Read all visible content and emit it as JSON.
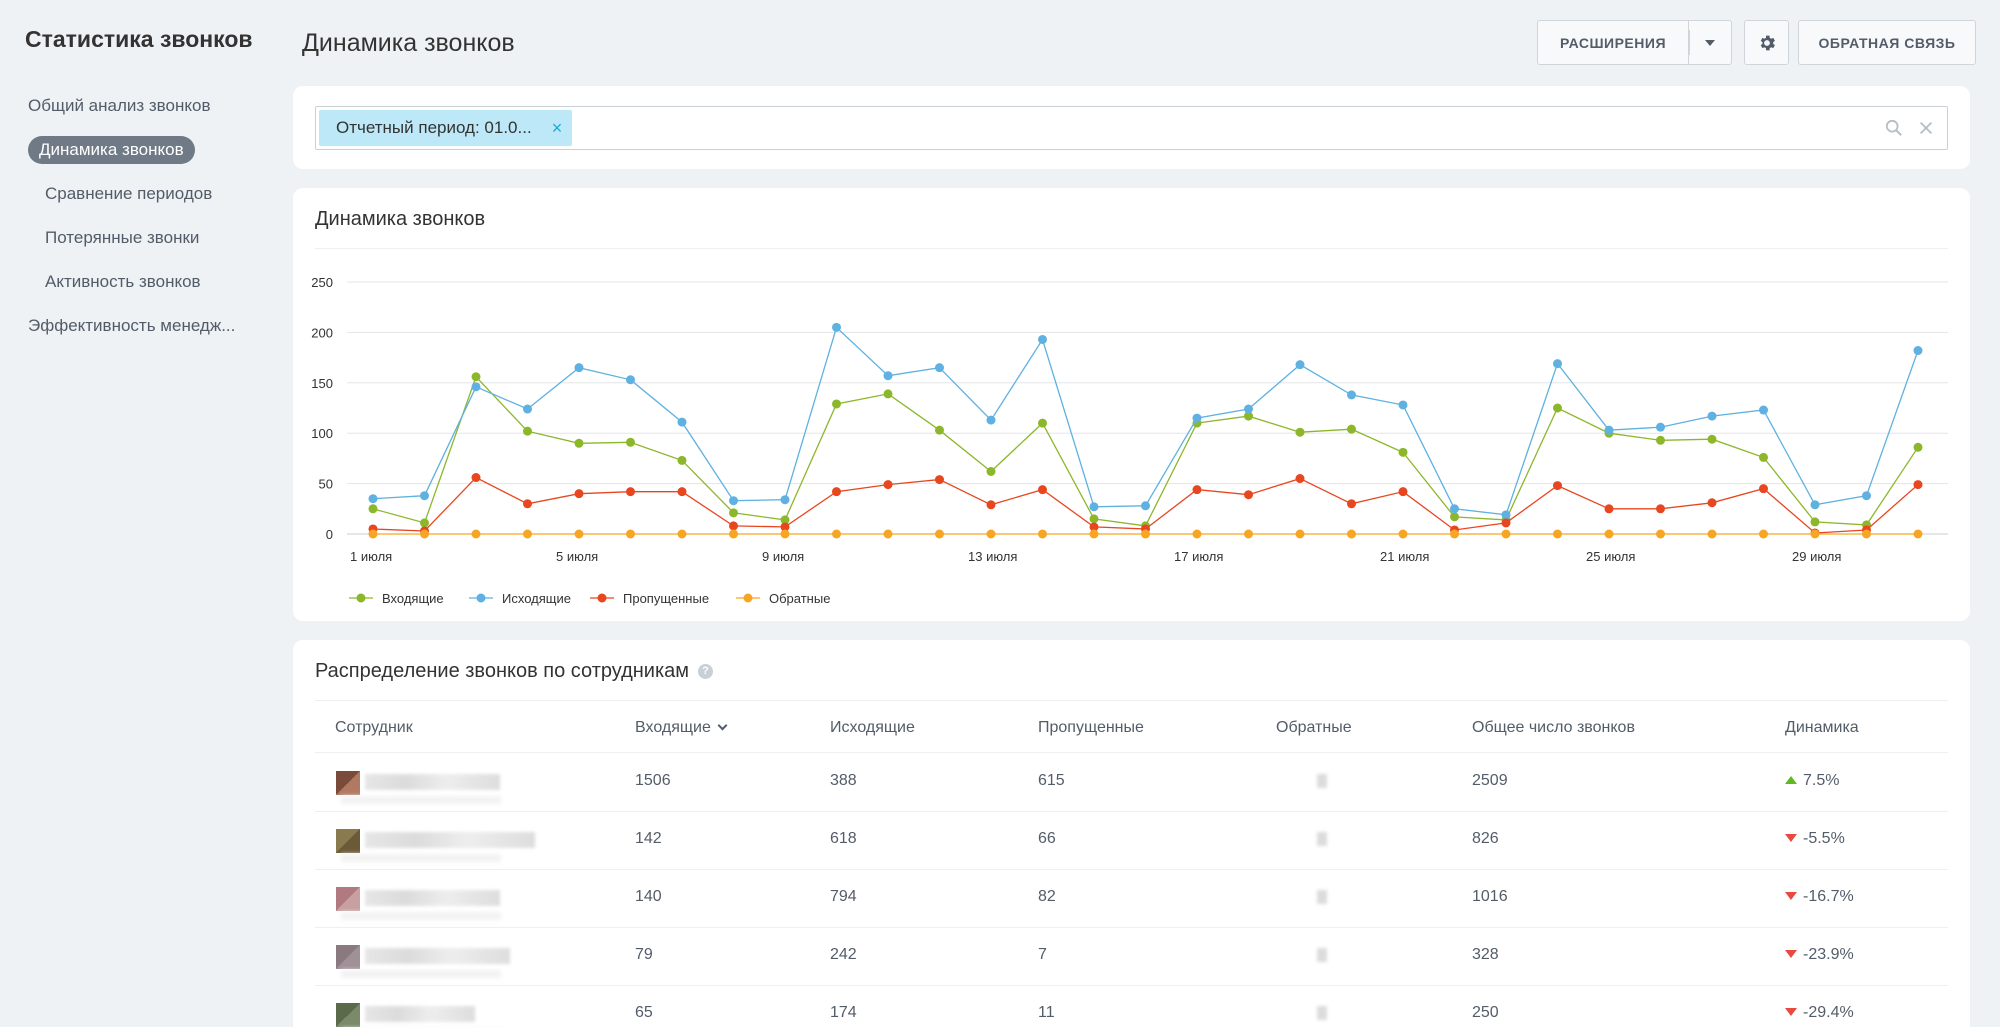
{
  "sidebar": {
    "title": "Статистика звонков",
    "items": [
      {
        "label": "Общий анализ звонков",
        "sub": false,
        "active": false
      },
      {
        "label": "Динамика звонков",
        "sub": false,
        "active": true
      },
      {
        "label": "Сравнение периодов",
        "sub": true,
        "active": false
      },
      {
        "label": "Потерянные звонки",
        "sub": true,
        "active": false
      },
      {
        "label": "Активность звонков",
        "sub": true,
        "active": false
      },
      {
        "label": "Эффективность менедж...",
        "sub": false,
        "active": false
      }
    ]
  },
  "header": {
    "title": "Динамика звонков",
    "extensions_label": "РАСШИРЕНИЯ",
    "feedback_label": "ОБРАТНАЯ СВЯЗЬ"
  },
  "filter": {
    "chip_label": "Отчетный период: 01.0...",
    "chip_close": "×"
  },
  "chart_card": {
    "title": "Динамика звонков"
  },
  "chart_data": {
    "type": "line",
    "x": [
      "1 июля",
      "2 июля",
      "3 июля",
      "4 июля",
      "5 июля",
      "6 июля",
      "7 июля",
      "8 июля",
      "9 июля",
      "10 июля",
      "11 июля",
      "12 июля",
      "13 июля",
      "14 июля",
      "15 июля",
      "16 июля",
      "17 июля",
      "18 июля",
      "19 июля",
      "20 июля",
      "21 июля",
      "22 июля",
      "23 июля",
      "24 июля",
      "25 июля",
      "26 июля",
      "27 июля",
      "28 июля",
      "29 июля",
      "30 июля",
      "31 июля"
    ],
    "x_tick_labels": [
      "1 июля",
      "5 июля",
      "9 июля",
      "13 июля",
      "17 июля",
      "21 июля",
      "25 июля",
      "29 июля"
    ],
    "x_tick_indices": [
      0,
      4,
      8,
      12,
      16,
      20,
      24,
      28
    ],
    "y_ticks": [
      0,
      50,
      100,
      150,
      200,
      250
    ],
    "ylim": [
      0,
      250
    ],
    "grid": true,
    "legend_position": "bottom-left",
    "series": [
      {
        "name": "Входящие",
        "color": "#8cb72b",
        "values": [
          25,
          11,
          156,
          102,
          90,
          91,
          73,
          21,
          14,
          129,
          139,
          103,
          62,
          110,
          15,
          8,
          110,
          117,
          101,
          104,
          81,
          17,
          14,
          125,
          100,
          93,
          94,
          76,
          12,
          9,
          86
        ]
      },
      {
        "name": "Исходящие",
        "color": "#5eb1e0",
        "values": [
          35,
          38,
          146,
          124,
          165,
          153,
          111,
          33,
          34,
          205,
          157,
          165,
          113,
          193,
          27,
          28,
          115,
          124,
          168,
          138,
          128,
          25,
          19,
          169,
          103,
          106,
          117,
          123,
          29,
          38,
          182
        ]
      },
      {
        "name": "Пропущенные",
        "color": "#e8461f",
        "values": [
          5,
          3,
          56,
          30,
          40,
          42,
          42,
          8,
          7,
          42,
          49,
          54,
          29,
          44,
          7,
          5,
          44,
          39,
          55,
          30,
          42,
          4,
          11,
          48,
          25,
          25,
          31,
          45,
          1,
          4,
          49
        ]
      },
      {
        "name": "Обратные",
        "color": "#f6a623",
        "values": [
          0,
          0,
          0,
          0,
          0,
          0,
          0,
          0,
          0,
          0,
          0,
          0,
          0,
          0,
          0,
          0,
          0,
          0,
          0,
          0,
          0,
          0,
          0,
          0,
          0,
          0,
          0,
          0,
          0,
          0,
          0
        ]
      }
    ]
  },
  "table": {
    "title": "Распределение звонков по сотрудникам",
    "help": "?",
    "headers": {
      "employee": "Сотрудник",
      "incoming": "Входящие",
      "outgoing": "Исходящие",
      "missed": "Пропущенные",
      "callback": "Обратные",
      "total": "Общее число звонков",
      "dynamics": "Динамика"
    },
    "rows": [
      {
        "incoming": "1506",
        "outgoing": "388",
        "missed": "615",
        "total": "2509",
        "dynamics": "7.5%",
        "trend": "up"
      },
      {
        "incoming": "142",
        "outgoing": "618",
        "missed": "66",
        "total": "826",
        "dynamics": "-5.5%",
        "trend": "down"
      },
      {
        "incoming": "140",
        "outgoing": "794",
        "missed": "82",
        "total": "1016",
        "dynamics": "-16.7%",
        "trend": "down"
      },
      {
        "incoming": "79",
        "outgoing": "242",
        "missed": "7",
        "total": "328",
        "dynamics": "-23.9%",
        "trend": "down"
      },
      {
        "incoming": "65",
        "outgoing": "174",
        "missed": "11",
        "total": "250",
        "dynamics": "-29.4%",
        "trend": "down"
      }
    ]
  }
}
